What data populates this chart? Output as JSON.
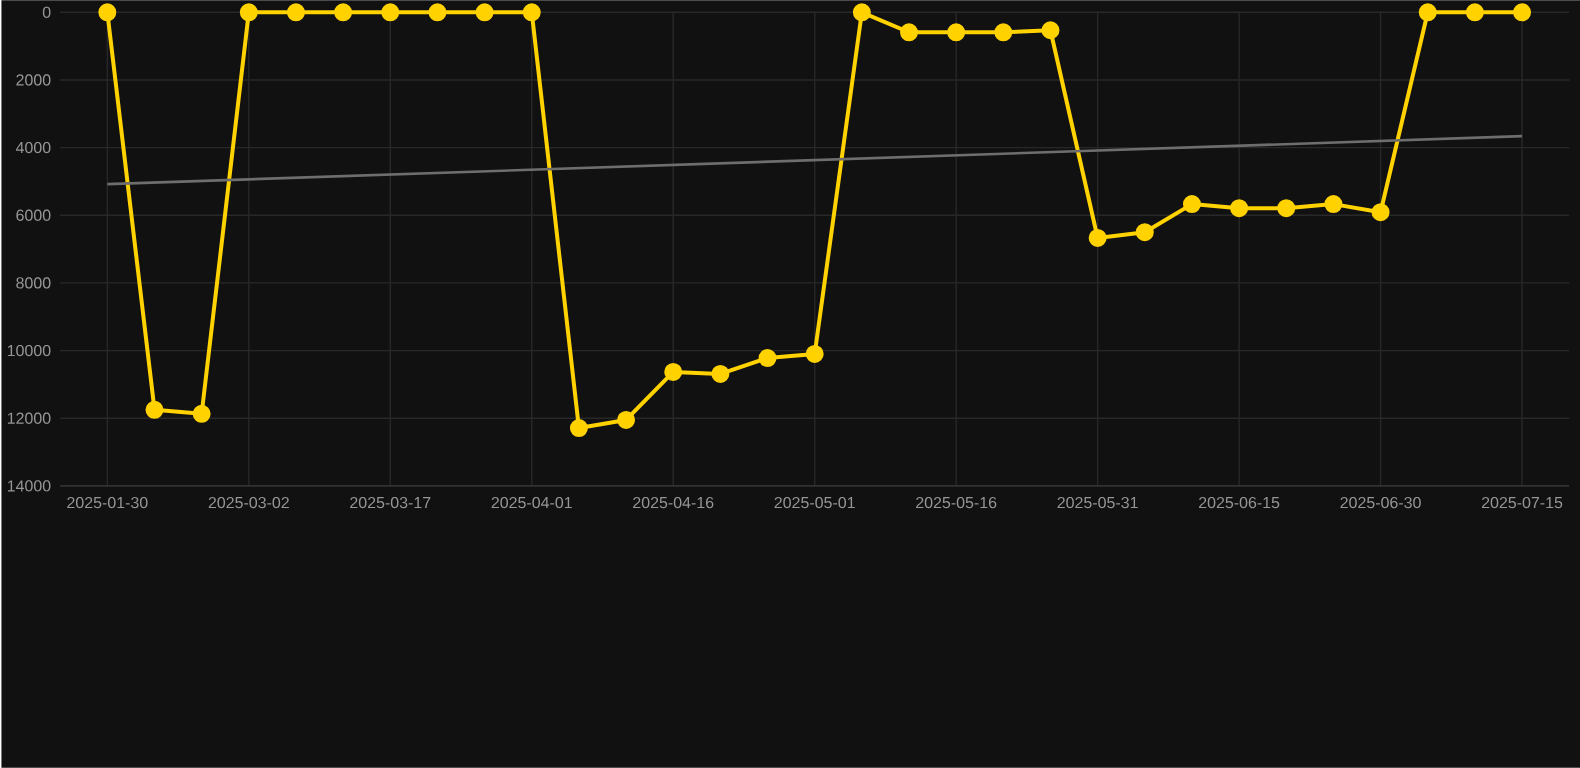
{
  "chart_data": {
    "type": "line",
    "categories": [
      "2025-01-30",
      null,
      null,
      "2025-03-02",
      null,
      null,
      "2025-03-17",
      null,
      null,
      "2025-04-01",
      null,
      null,
      "2025-04-16",
      null,
      null,
      "2025-05-01",
      null,
      null,
      "2025-05-16",
      null,
      null,
      "2025-05-31",
      null,
      null,
      "2025-06-15",
      null,
      null,
      "2025-06-30",
      null,
      null,
      "2025-07-15"
    ],
    "series": [
      {
        "color": "#ffd200",
        "marker": "circle",
        "values": [
          0,
          11750,
          11870,
          0,
          0,
          0,
          0,
          0,
          0,
          0,
          12290,
          12050,
          10630,
          10690,
          10220,
          10100,
          0,
          590,
          590,
          590,
          530,
          6670,
          6500,
          5670,
          5790,
          5790,
          5670,
          5910,
          0,
          0,
          0
        ]
      },
      {
        "color": "#6e6e6e",
        "marker": "none",
        "values": [
          5080,
          null,
          null,
          null,
          null,
          null,
          null,
          null,
          null,
          null,
          null,
          null,
          null,
          null,
          null,
          null,
          null,
          null,
          null,
          null,
          null,
          null,
          null,
          null,
          null,
          null,
          null,
          null,
          null,
          null,
          3660
        ]
      }
    ],
    "ylim": [
      14000,
      0
    ],
    "yticks": [
      0,
      2000,
      4000,
      6000,
      8000,
      10000,
      12000,
      14000
    ],
    "grid": true,
    "line_style": "solid"
  }
}
